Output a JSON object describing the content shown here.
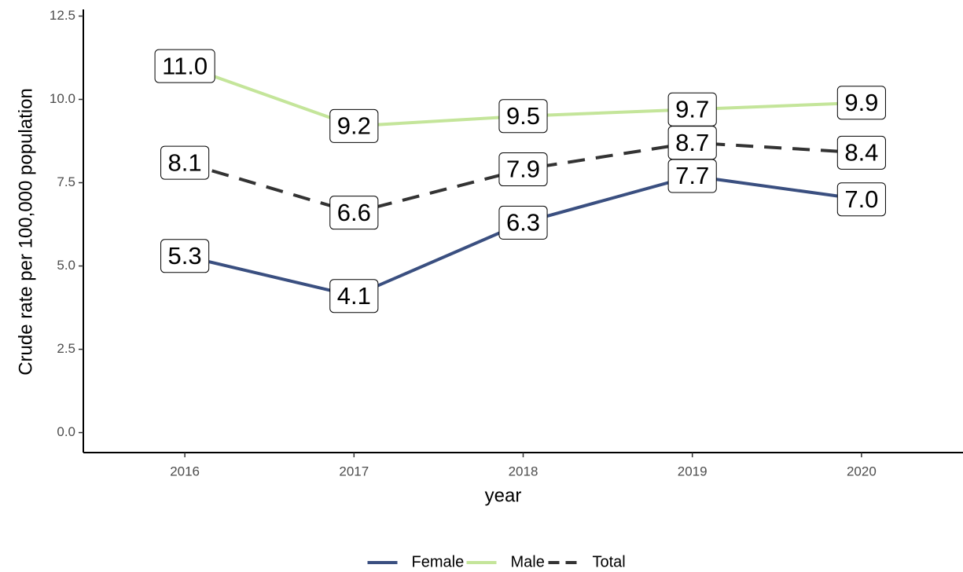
{
  "chart_data": {
    "type": "line",
    "x": [
      2016,
      2017,
      2018,
      2019,
      2020
    ],
    "series": [
      {
        "name": "Female",
        "color": "#3a4f80",
        "line_style": "solid",
        "values": [
          5.3,
          4.1,
          6.3,
          7.7,
          7.0
        ],
        "value_labels": [
          "5.3",
          "4.1",
          "6.3",
          "7.7",
          "7.0"
        ]
      },
      {
        "name": "Male",
        "color": "#c4e59a",
        "line_style": "solid",
        "values": [
          11.0,
          9.2,
          9.5,
          9.7,
          9.9
        ],
        "value_labels": [
          "11.0",
          "9.2",
          "9.5",
          "9.7",
          "9.9"
        ]
      },
      {
        "name": "Total",
        "color": "#333333",
        "line_style": "dashed",
        "values": [
          8.1,
          6.6,
          7.9,
          8.7,
          8.4
        ],
        "value_labels": [
          "8.1",
          "6.6",
          "7.9",
          "8.7",
          "8.4"
        ]
      }
    ],
    "x_label": "year",
    "y_label": "Crude rate per 100,000 population",
    "xlim": [
      2015.4,
      2020.6
    ],
    "xticks": [
      2016,
      2017,
      2018,
      2019,
      2020
    ],
    "ylim": [
      -0.6,
      12.7
    ],
    "yticks": [
      {
        "value": 0,
        "label": "0.0"
      },
      2.5,
      {
        "value": 5,
        "label": "5.0"
      },
      7.5,
      {
        "value": 10,
        "label": "10.0"
      },
      12.5
    ],
    "legend": "bottom",
    "grid": false
  }
}
